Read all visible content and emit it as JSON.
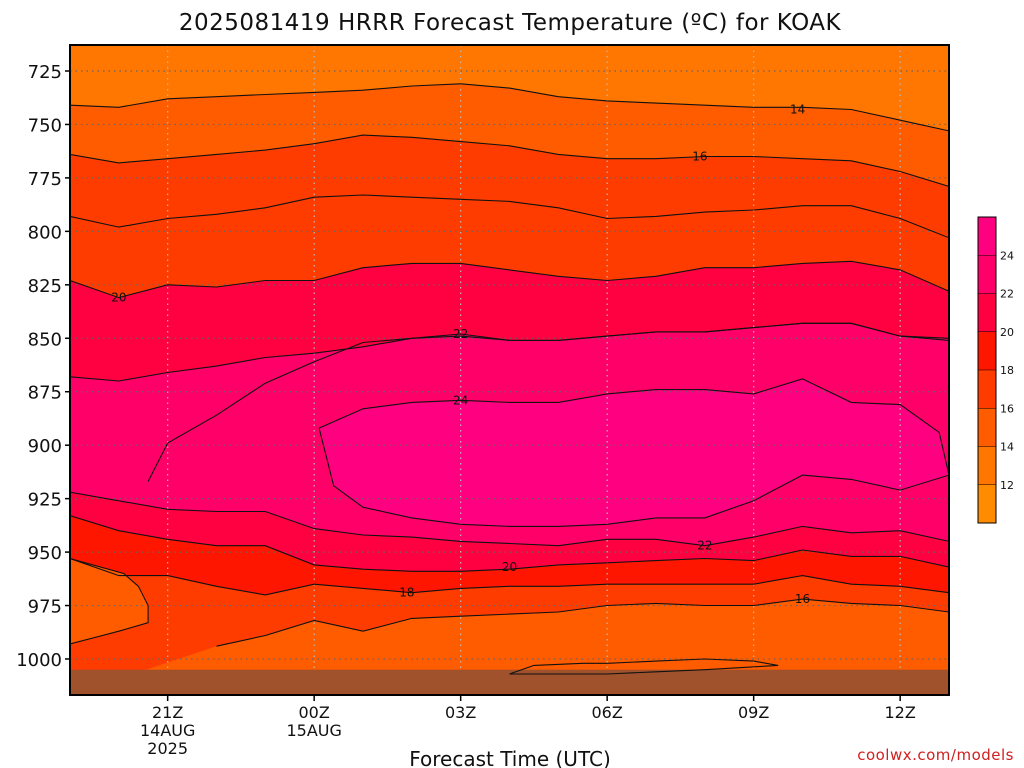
{
  "chart_data": {
    "type": "heatmap",
    "title": "2025081419 HRRR Forecast Temperature (ºC) for KOAK",
    "xlabel": "Forecast Time (UTC)",
    "ylabel": "",
    "credit": "coolwx.com/models",
    "x_range": [
      19,
      37
    ],
    "y_range": [
      1010,
      712
    ],
    "x_ticks": [
      {
        "x": 21,
        "label": "21Z",
        "label2": "14AUG",
        "label3": "2025"
      },
      {
        "x": 24,
        "label": "00Z",
        "label2": "15AUG",
        "label3": ""
      },
      {
        "x": 27,
        "label": "03Z",
        "label2": "",
        "label3": ""
      },
      {
        "x": 30,
        "label": "06Z",
        "label2": "",
        "label3": ""
      },
      {
        "x": 33,
        "label": "09Z",
        "label2": "",
        "label3": ""
      },
      {
        "x": 36,
        "label": "12Z",
        "label2": "",
        "label3": ""
      }
    ],
    "y_ticks": [
      725,
      750,
      775,
      800,
      825,
      850,
      875,
      900,
      925,
      950,
      975,
      1000
    ],
    "ground_level_hpa": 1005,
    "grid": true,
    "colorbar": {
      "position": "right",
      "levels": [
        10,
        12,
        14,
        16,
        18,
        20,
        22,
        24,
        26
      ],
      "labels": [
        "12",
        "14",
        "16",
        "18",
        "20",
        "22",
        "24"
      ],
      "colors": [
        "#ff8c00",
        "#ff7600",
        "#ff5c00",
        "#ff3c00",
        "#ff1600",
        "#ff0040",
        "#ff0068",
        "#ff0080"
      ]
    },
    "ground_color": "#a0522d",
    "contours": [
      {
        "level": 14,
        "label": "14",
        "label_at": [
          33.9,
          743
        ],
        "points": [
          [
            19,
            741
          ],
          [
            20,
            742
          ],
          [
            21,
            738
          ],
          [
            22,
            737
          ],
          [
            23,
            736
          ],
          [
            24,
            735
          ],
          [
            25,
            734
          ],
          [
            26,
            732
          ],
          [
            27,
            731
          ],
          [
            28,
            733
          ],
          [
            29,
            737
          ],
          [
            30,
            739
          ],
          [
            31,
            740
          ],
          [
            32,
            741
          ],
          [
            33,
            742
          ],
          [
            34,
            742
          ],
          [
            35,
            743
          ],
          [
            36,
            748
          ],
          [
            37,
            753
          ]
        ]
      },
      {
        "level": 16,
        "label": "16",
        "label_at": [
          31.9,
          765
        ],
        "points": [
          [
            19,
            764
          ],
          [
            20,
            768
          ],
          [
            21,
            766
          ],
          [
            22,
            764
          ],
          [
            23,
            762
          ],
          [
            24,
            759
          ],
          [
            25,
            755
          ],
          [
            26,
            756
          ],
          [
            27,
            758
          ],
          [
            28,
            760
          ],
          [
            29,
            764
          ],
          [
            30,
            766
          ],
          [
            31,
            766
          ],
          [
            32,
            765
          ],
          [
            33,
            765
          ],
          [
            34,
            766
          ],
          [
            35,
            767
          ],
          [
            36,
            772
          ],
          [
            37,
            779
          ]
        ]
      },
      {
        "level": 18,
        "label": "",
        "label_at": null,
        "points": [
          [
            19,
            793
          ],
          [
            20,
            798
          ],
          [
            21,
            794
          ],
          [
            22,
            792
          ],
          [
            23,
            789
          ],
          [
            24,
            784
          ],
          [
            25,
            783
          ],
          [
            26,
            784
          ],
          [
            27,
            785
          ],
          [
            28,
            786
          ],
          [
            29,
            789
          ],
          [
            30,
            794
          ],
          [
            31,
            793
          ],
          [
            32,
            791
          ],
          [
            33,
            790
          ],
          [
            34,
            788
          ],
          [
            35,
            788
          ],
          [
            36,
            794
          ],
          [
            37,
            803
          ]
        ]
      },
      {
        "level": 20,
        "label": "20",
        "label_at": [
          20.0,
          831
        ],
        "points": [
          [
            19,
            823
          ],
          [
            20,
            831
          ],
          [
            21,
            825
          ],
          [
            22,
            826
          ],
          [
            23,
            823
          ],
          [
            24,
            823
          ],
          [
            25,
            817
          ],
          [
            26,
            815
          ],
          [
            27,
            815
          ],
          [
            28,
            818
          ],
          [
            29,
            821
          ],
          [
            30,
            823
          ],
          [
            31,
            821
          ],
          [
            32,
            817
          ],
          [
            33,
            817
          ],
          [
            34,
            815
          ],
          [
            35,
            814
          ],
          [
            36,
            818
          ],
          [
            37,
            828
          ]
        ]
      },
      {
        "level": 22,
        "label": "22",
        "label_at": [
          27.0,
          848
        ],
        "points": [
          [
            19,
            868
          ],
          [
            20,
            870
          ],
          [
            21,
            866
          ],
          [
            22,
            863
          ],
          [
            23,
            859
          ],
          [
            24,
            857
          ],
          [
            25,
            854
          ],
          [
            26,
            850
          ],
          [
            27,
            848
          ],
          [
            28,
            851
          ],
          [
            29,
            851
          ],
          [
            30,
            849
          ],
          [
            31,
            847
          ],
          [
            32,
            847
          ],
          [
            33,
            845
          ],
          [
            34,
            843
          ],
          [
            35,
            843
          ],
          [
            36,
            849
          ],
          [
            37,
            850
          ]
        ]
      },
      {
        "level": 24,
        "label": "24",
        "label_at": [
          27.0,
          879
        ],
        "points": [
          [
            24.1,
            892
          ],
          [
            25,
            883
          ],
          [
            26,
            880
          ],
          [
            27,
            879
          ],
          [
            28,
            880
          ],
          [
            29,
            880
          ],
          [
            30,
            876
          ],
          [
            31,
            874
          ],
          [
            32,
            874
          ],
          [
            33,
            876
          ],
          [
            34,
            869
          ],
          [
            35,
            880
          ],
          [
            36,
            881
          ],
          [
            36.8,
            894
          ],
          [
            37,
            914
          ],
          [
            36,
            921
          ],
          [
            35,
            916
          ],
          [
            34,
            914
          ],
          [
            33,
            926
          ],
          [
            32,
            934
          ],
          [
            31,
            934
          ],
          [
            30,
            937
          ],
          [
            29,
            938
          ],
          [
            28,
            938
          ],
          [
            27,
            937
          ],
          [
            26,
            934
          ],
          [
            25,
            929
          ],
          [
            24.4,
            919
          ],
          [
            24.1,
            892
          ]
        ]
      },
      {
        "level": 24,
        "label": "",
        "label_at": null,
        "points": [
          [
            20.6,
            917
          ],
          [
            21,
            899
          ],
          [
            22,
            886
          ],
          [
            23,
            871
          ],
          [
            24,
            861
          ],
          [
            25,
            852
          ],
          [
            26,
            850
          ],
          [
            27,
            849
          ],
          [
            28,
            851
          ],
          [
            29,
            851
          ],
          [
            30,
            849
          ],
          [
            31,
            847
          ],
          [
            32,
            847
          ],
          [
            33,
            845
          ],
          [
            34,
            843
          ],
          [
            35,
            843
          ],
          [
            36,
            849
          ],
          [
            37,
            851
          ]
        ]
      }
    ],
    "lower_contours": [
      {
        "level": 22,
        "label": "22",
        "label_at": [
          32.0,
          947
        ],
        "points": [
          [
            19,
            922
          ],
          [
            20,
            926
          ],
          [
            21,
            930
          ],
          [
            22,
            931
          ],
          [
            23,
            931
          ],
          [
            24,
            939
          ],
          [
            25,
            942
          ],
          [
            26,
            943
          ],
          [
            27,
            945
          ],
          [
            28,
            946
          ],
          [
            29,
            947
          ],
          [
            30,
            944
          ],
          [
            31,
            944
          ],
          [
            32,
            947
          ],
          [
            33,
            943
          ],
          [
            34,
            938
          ],
          [
            35,
            941
          ],
          [
            36,
            940
          ],
          [
            37,
            945
          ]
        ]
      },
      {
        "level": 20,
        "label": "20",
        "label_at": [
          28.0,
          957
        ],
        "points": [
          [
            19,
            933
          ],
          [
            20,
            940
          ],
          [
            21,
            944
          ],
          [
            22,
            947
          ],
          [
            23,
            947
          ],
          [
            24,
            956
          ],
          [
            25,
            958
          ],
          [
            26,
            959
          ],
          [
            27,
            959
          ],
          [
            28,
            958
          ],
          [
            29,
            956
          ],
          [
            30,
            955
          ],
          [
            31,
            954
          ],
          [
            32,
            953
          ],
          [
            33,
            954
          ],
          [
            34,
            949
          ],
          [
            35,
            952
          ],
          [
            36,
            952
          ],
          [
            37,
            957
          ]
        ]
      },
      {
        "level": 18,
        "label": "18",
        "label_at": [
          25.9,
          969
        ],
        "points": [
          [
            19,
            953
          ],
          [
            20,
            961
          ],
          [
            21,
            961
          ],
          [
            22,
            966
          ],
          [
            23,
            970
          ],
          [
            24,
            965
          ],
          [
            25,
            967
          ],
          [
            26,
            969
          ],
          [
            27,
            967
          ],
          [
            28,
            966
          ],
          [
            29,
            966
          ],
          [
            30,
            965
          ],
          [
            31,
            965
          ],
          [
            32,
            965
          ],
          [
            33,
            965
          ],
          [
            34,
            961
          ],
          [
            35,
            965
          ],
          [
            36,
            966
          ],
          [
            37,
            969
          ]
        ]
      },
      {
        "level": 16,
        "label": "16",
        "label_at": [
          34.0,
          972
        ],
        "points": [
          [
            19,
            993
          ],
          [
            20,
            987
          ],
          [
            20.6,
            983
          ],
          [
            20.6,
            975
          ],
          [
            20.4,
            966
          ],
          [
            20.1,
            960
          ],
          [
            19,
            953
          ]
        ]
      },
      {
        "level": 16,
        "label": "",
        "label_at": null,
        "points": [
          [
            22,
            994
          ],
          [
            23,
            989
          ],
          [
            24,
            982
          ],
          [
            25,
            987
          ],
          [
            26,
            981
          ],
          [
            27,
            980
          ],
          [
            28,
            979
          ],
          [
            29,
            978
          ],
          [
            30,
            975
          ],
          [
            31,
            974
          ],
          [
            32,
            975
          ],
          [
            33,
            975
          ],
          [
            34,
            972
          ],
          [
            35,
            974
          ],
          [
            36,
            975
          ],
          [
            37,
            978
          ]
        ]
      },
      {
        "level": 14,
        "label": "",
        "label_at": null,
        "points": [
          [
            28,
            1007
          ],
          [
            28.5,
            1003
          ],
          [
            29.5,
            1002
          ],
          [
            30,
            1002
          ],
          [
            31,
            1001
          ],
          [
            32,
            1000
          ],
          [
            33,
            1001
          ],
          [
            33.5,
            1003
          ],
          [
            32,
            1005
          ],
          [
            31,
            1006
          ],
          [
            30,
            1007
          ],
          [
            28,
            1007
          ]
        ]
      }
    ]
  }
}
